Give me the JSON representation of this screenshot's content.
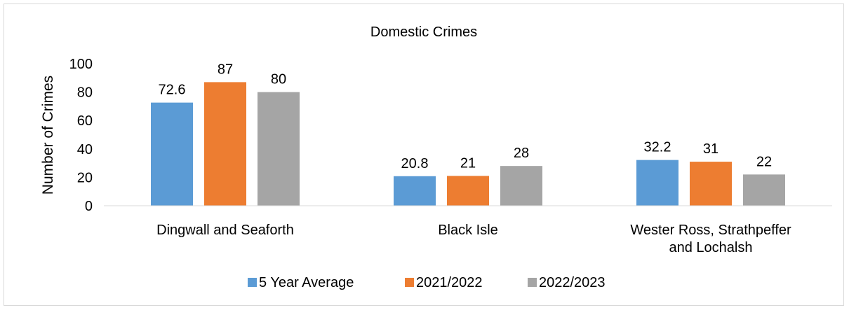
{
  "chart_data": {
    "type": "bar",
    "title": "Domestic Crimes",
    "xlabel": "",
    "ylabel": "Number of Crimes",
    "ylim": [
      0,
      100
    ],
    "yticks": [
      0,
      20,
      40,
      60,
      80,
      100
    ],
    "grid": false,
    "legend_position": "bottom",
    "categories": [
      [
        "Dingwall and Seaforth"
      ],
      [
        "Black Isle"
      ],
      [
        "Wester Ross, Strathpeffer",
        "and Lochalsh"
      ]
    ],
    "series": [
      {
        "name": "5 Year Average",
        "color": "#5b9bd5",
        "values": [
          72.6,
          20.8,
          32.2
        ]
      },
      {
        "name": "2021/2022",
        "color": "#ed7d31",
        "values": [
          87,
          21,
          31
        ]
      },
      {
        "name": "2022/2023",
        "color": "#a5a5a5",
        "values": [
          80,
          28,
          22
        ]
      }
    ]
  }
}
